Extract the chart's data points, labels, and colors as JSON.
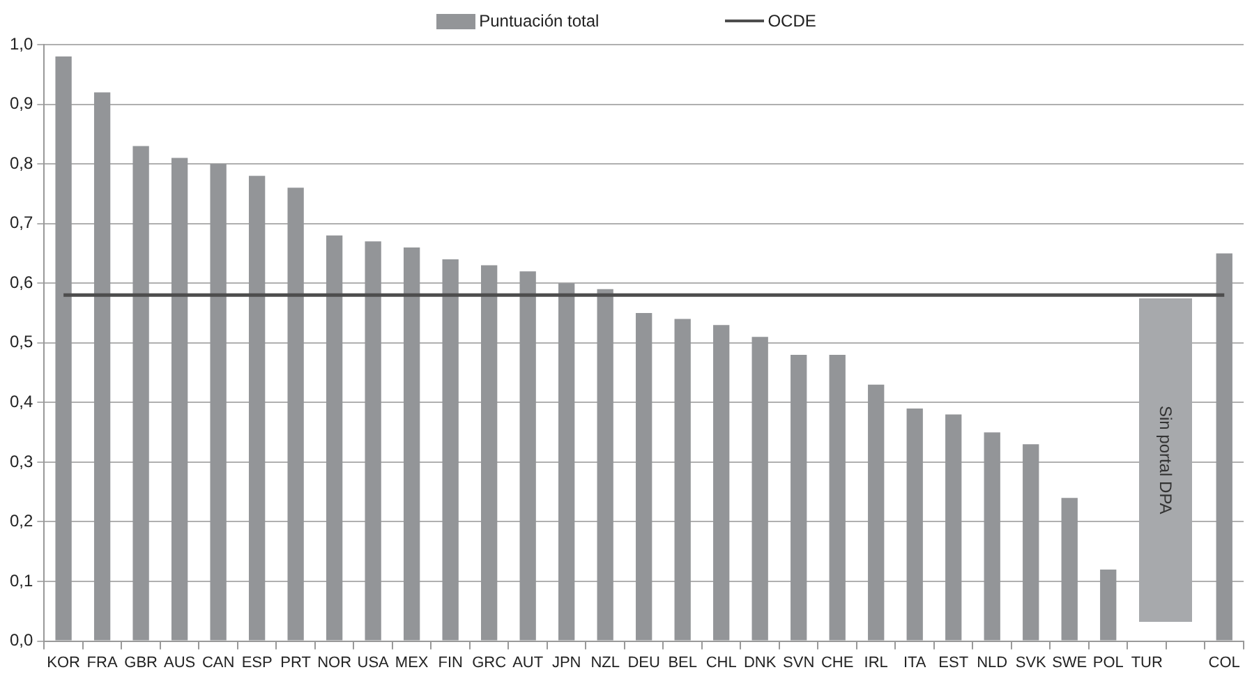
{
  "chart_data": {
    "type": "bar",
    "categories": [
      "KOR",
      "FRA",
      "GBR",
      "AUS",
      "CAN",
      "ESP",
      "PRT",
      "NOR",
      "USA",
      "MEX",
      "FIN",
      "GRC",
      "AUT",
      "JPN",
      "NZL",
      "DEU",
      "BEL",
      "CHL",
      "DNK",
      "SVN",
      "CHE",
      "IRL",
      "ITA",
      "EST",
      "NLD",
      "SVK",
      "SWE",
      "POL",
      "TUR",
      null,
      "COL"
    ],
    "series": [
      {
        "name": "Puntuación total",
        "color": "#939598",
        "values": [
          0.98,
          0.92,
          0.83,
          0.81,
          0.8,
          0.78,
          0.76,
          0.68,
          0.67,
          0.66,
          0.64,
          0.63,
          0.62,
          0.6,
          0.59,
          0.55,
          0.54,
          0.53,
          0.51,
          0.48,
          0.48,
          0.43,
          0.39,
          0.38,
          0.35,
          0.33,
          0.24,
          0.12,
          null,
          null,
          0.65
        ]
      },
      {
        "name": "OCDE",
        "type": "line",
        "color": "#4d4d4d",
        "values": [
          0.58,
          0.58,
          0.58,
          0.58,
          0.58,
          0.58,
          0.58,
          0.58,
          0.58,
          0.58,
          0.58,
          0.58,
          0.58,
          0.58,
          0.58,
          0.58,
          0.58,
          0.58,
          0.58,
          0.58,
          0.58,
          0.58,
          0.58,
          0.58,
          0.58,
          0.58,
          0.58,
          0.58,
          0.58,
          0.58,
          0.58
        ]
      }
    ],
    "ylim": [
      0,
      1
    ],
    "yticks": [
      {
        "value": 0,
        "label": "0,0"
      },
      {
        "value": 0.1,
        "label": "0,1"
      },
      {
        "value": 0.2,
        "label": "0,2"
      },
      {
        "value": 0.3,
        "label": "0,3"
      },
      {
        "value": 0.4,
        "label": "0,4"
      },
      {
        "value": 0.5,
        "label": "0,5"
      },
      {
        "value": 0.6,
        "label": "0,6"
      },
      {
        "value": 0.7,
        "label": "0,7"
      },
      {
        "value": 0.8,
        "label": "0,8"
      },
      {
        "value": 0.9,
        "label": "0,9"
      },
      {
        "value": 1,
        "label": "1,0"
      }
    ],
    "grid": "y",
    "legend": "top",
    "marker": "none",
    "annotations": [
      "Sin portal DPA"
    ]
  }
}
